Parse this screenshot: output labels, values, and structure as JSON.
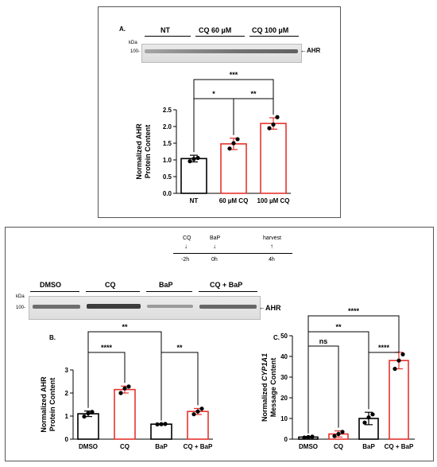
{
  "panel_a": {
    "letter": "A.",
    "blot": {
      "groups": [
        "NT",
        "CQ 60 µM",
        "CQ 100 µM"
      ],
      "kda": "kDa",
      "marker": "100-",
      "band_label": "AHR"
    }
  },
  "panel_top": {
    "timeline": {
      "labels": [
        "CQ",
        "BaP",
        "harvest"
      ],
      "times": [
        "-2h",
        "0h",
        "4h"
      ]
    },
    "blot": {
      "groups": [
        "DMSO",
        "CQ",
        "BaP",
        "CQ + BaP"
      ],
      "kda": "kDa",
      "marker": "100-",
      "band_label": "AHR"
    }
  },
  "chart_data": [
    {
      "id": "A",
      "type": "bar",
      "categories": [
        "NT",
        "60 µM CQ",
        "100 µM CQ"
      ],
      "values": [
        1.04,
        1.48,
        2.09
      ],
      "errors": [
        0.1,
        0.17,
        0.17
      ],
      "points": [
        [
          0.96,
          1.03,
          1.06
        ],
        [
          1.34,
          1.5,
          1.62
        ],
        [
          1.95,
          2.06,
          2.28
        ]
      ],
      "ylabel": "Normalized AHR Protein Content",
      "ylim": [
        0,
        2.5
      ],
      "yticks": [
        "0.0",
        "0.5",
        "1.0",
        "1.5",
        "2.0",
        "2.5"
      ],
      "bar_colors": [
        "#000000",
        "#e8332d",
        "#e8332d"
      ],
      "significance": [
        {
          "from": 0,
          "to": 2,
          "label": "***"
        },
        {
          "from": 0,
          "to": 1,
          "label": "*"
        },
        {
          "from": 1,
          "to": 2,
          "label": "**"
        }
      ]
    },
    {
      "id": "B",
      "type": "bar",
      "letter": "B.",
      "categories": [
        "DMSO",
        "CQ",
        "BaP",
        "CQ + BaP"
      ],
      "values": [
        1.1,
        2.15,
        0.65,
        1.2
      ],
      "errors": [
        0.12,
        0.15,
        0.02,
        0.13
      ],
      "points": [
        [
          0.98,
          1.12,
          1.18
        ],
        [
          2.0,
          2.2,
          2.28
        ],
        [
          0.64,
          0.65,
          0.66
        ],
        [
          1.08,
          1.2,
          1.32
        ]
      ],
      "ylabel": "Normalized AHR Protein Content",
      "ylim": [
        0,
        3
      ],
      "yticks": [
        "0",
        "1",
        "2",
        "3"
      ],
      "bar_colors": [
        "#000000",
        "#e8332d",
        "#000000",
        "#e8332d"
      ],
      "significance": [
        {
          "from": 0,
          "to": 2,
          "label": "**"
        },
        {
          "from": 0,
          "to": 1,
          "label": "****"
        },
        {
          "from": 2,
          "to": 3,
          "label": "**"
        }
      ]
    },
    {
      "id": "C",
      "type": "bar",
      "letter": "C.",
      "categories": [
        "DMSO",
        "CQ",
        "BaP",
        "CQ + BaP"
      ],
      "values": [
        1.0,
        2.5,
        10.0,
        38.0
      ],
      "errors": [
        0.3,
        1.5,
        3.0,
        4.0
      ],
      "points": [
        [
          0.8,
          1.0,
          1.2
        ],
        [
          1.5,
          2.5,
          3.5
        ],
        [
          8.0,
          10.5,
          12.0
        ],
        [
          34.0,
          38.0,
          41.0
        ]
      ],
      "ylabel_prefix": "Normalized ",
      "ylabel_gene": "CYP1A1",
      "ylabel_line2": "Message Content",
      "ylim": [
        0,
        50
      ],
      "yticks": [
        "0",
        "10",
        "20",
        "30",
        "40",
        "50"
      ],
      "bar_colors": [
        "#000000",
        "#e8332d",
        "#000000",
        "#e8332d"
      ],
      "significance": [
        {
          "from": 0,
          "to": 3,
          "label": "****"
        },
        {
          "from": 0,
          "to": 2,
          "label": "**"
        },
        {
          "from": 0,
          "to": 1,
          "label": "ns"
        },
        {
          "from": 2,
          "to": 3,
          "label": "****"
        }
      ]
    }
  ]
}
